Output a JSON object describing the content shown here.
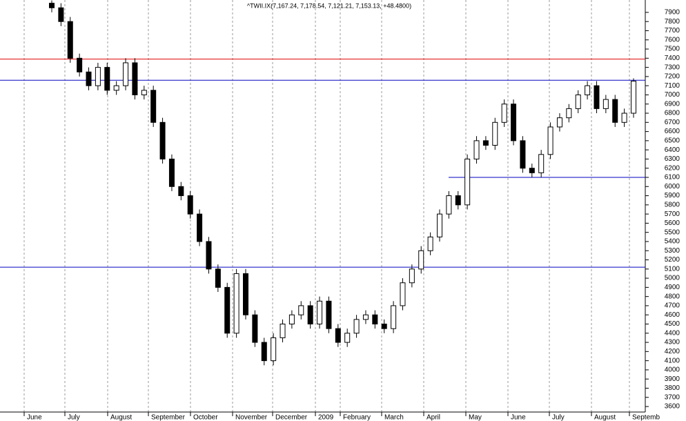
{
  "chart_data": {
    "type": "candlestick",
    "title": "^TWII.IX(7,167.24, 7,178.54, 7,121.21, 7,153.13, +48.4800)",
    "categories": [
      "June",
      "July",
      "August",
      "September",
      "October",
      "November",
      "December",
      "2009",
      "February",
      "March",
      "April",
      "May",
      "June",
      "July",
      "August",
      "Septemb"
    ],
    "open": [
      8000,
      7950,
      7800,
      7400,
      7250,
      7100,
      7300,
      7050,
      7100,
      7350,
      7000,
      7050,
      6700,
      6300,
      6000,
      5900,
      5700,
      5400,
      5100,
      4900,
      4400,
      5050,
      4600,
      4300,
      4100,
      4350,
      4500,
      4600,
      4700,
      4500,
      4750,
      4450,
      4300,
      4400,
      4550,
      4600,
      4500,
      4450,
      4700,
      4950,
      5100,
      5300,
      5450,
      5700,
      5900,
      5800,
      6300,
      6500,
      6450,
      6700,
      6900,
      6500,
      6200,
      6150,
      6350,
      6650,
      6750,
      6850,
      7000,
      7100,
      6850,
      6950,
      6700,
      6800
    ],
    "high": [
      8030,
      8000,
      7850,
      7450,
      7300,
      7350,
      7350,
      7150,
      7400,
      7400,
      7100,
      7100,
      6750,
      6350,
      6050,
      5950,
      5750,
      5450,
      5150,
      4950,
      5100,
      5100,
      4650,
      4350,
      4400,
      4550,
      4650,
      4750,
      4750,
      4800,
      4800,
      4500,
      4450,
      4600,
      4650,
      4650,
      4550,
      4750,
      5000,
      5150,
      5350,
      5500,
      5750,
      5950,
      5950,
      6350,
      6550,
      6550,
      6750,
      6950,
      6950,
      6550,
      6250,
      6400,
      6700,
      6800,
      6900,
      7050,
      7150,
      7150,
      7000,
      7000,
      6850,
      7180
    ],
    "low": [
      7900,
      7750,
      7350,
      7200,
      7050,
      7050,
      7000,
      7000,
      7050,
      6950,
      6950,
      6650,
      6250,
      5950,
      5850,
      5650,
      5350,
      5050,
      4850,
      4350,
      4350,
      4550,
      4250,
      4050,
      4050,
      4300,
      4450,
      4550,
      4450,
      4450,
      4400,
      4250,
      4250,
      4350,
      4500,
      4450,
      4400,
      4400,
      4650,
      4900,
      5050,
      5250,
      5400,
      5650,
      5750,
      5750,
      6250,
      6400,
      6400,
      6650,
      6450,
      6150,
      6100,
      6100,
      6300,
      6600,
      6700,
      6800,
      6950,
      6800,
      6800,
      6650,
      6650,
      6750
    ],
    "close": [
      7950,
      7800,
      7400,
      7250,
      7100,
      7300,
      7050,
      7100,
      7350,
      7000,
      7050,
      6700,
      6300,
      6000,
      5900,
      5700,
      5400,
      5100,
      4900,
      4400,
      5050,
      4600,
      4300,
      4100,
      4350,
      4500,
      4600,
      4700,
      4500,
      4750,
      4450,
      4300,
      4400,
      4550,
      4600,
      4500,
      4450,
      4700,
      4950,
      5100,
      5300,
      5450,
      5700,
      5900,
      5800,
      6300,
      6500,
      6450,
      6700,
      6900,
      6500,
      6200,
      6150,
      6350,
      6650,
      6750,
      6850,
      7000,
      7100,
      6850,
      6950,
      6700,
      6800,
      7150
    ],
    "up_color": "#ffffff",
    "down_color": "#000000",
    "hlines": [
      {
        "value": 7390,
        "color": "#e00000"
      },
      {
        "value": 7160,
        "color": "#0000c0"
      },
      {
        "value": 6100,
        "color": "#0000c0"
      },
      {
        "value": 5120,
        "color": "#0000c0"
      }
    ],
    "ylim": [
      3540,
      8035
    ],
    "yticks": [
      3600,
      3700,
      3800,
      3900,
      4000,
      4100,
      4200,
      4300,
      4400,
      4500,
      4600,
      4700,
      4800,
      4900,
      5000,
      5100,
      5200,
      5300,
      5400,
      5500,
      5600,
      5700,
      5800,
      5900,
      6000,
      6100,
      6200,
      6300,
      6400,
      6500,
      6600,
      6700,
      6800,
      6900,
      7000,
      7100,
      7200,
      7300,
      7400,
      7500,
      7600,
      7700,
      7800,
      7900
    ],
    "grid": true
  }
}
